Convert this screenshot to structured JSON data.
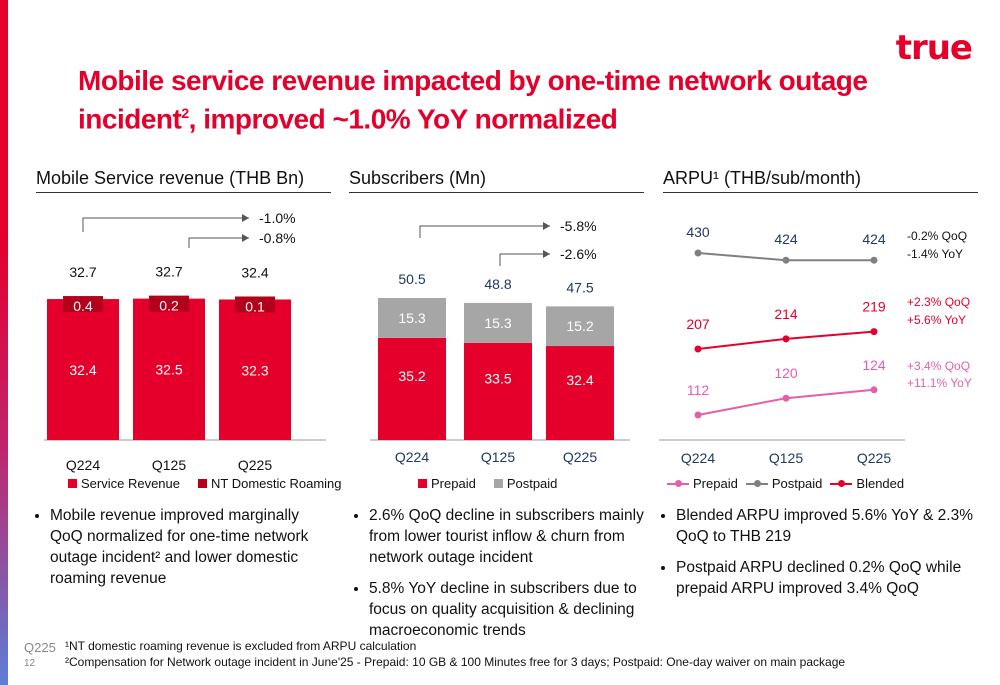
{
  "logo": "true",
  "title_line1": "Mobile service revenue impacted by one-time network outage",
  "title_line2_a": "incident",
  "title_line2_sup": "2",
  "title_line2_b": ", improved ~1.0% YoY normalized",
  "colors": {
    "red": "#e4002b",
    "darkred": "#b3001b",
    "grey": "#a6a6a6",
    "pink": "#e45fa8",
    "greyline": "#808080"
  },
  "sections": {
    "revenue": "Mobile Service revenue (THB Bn)",
    "subs": "Subscribers (Mn)",
    "arpu": "ARPU¹ (THB/sub/month)"
  },
  "chart_data": [
    {
      "type": "bar",
      "stacked": true,
      "categories": [
        "Q224",
        "Q125",
        "Q225"
      ],
      "series": [
        {
          "name": "Service Revenue",
          "values": [
            32.4,
            32.5,
            32.3
          ]
        },
        {
          "name": "NT Domestic Roaming",
          "values": [
            0.4,
            0.2,
            0.1
          ]
        }
      ],
      "totals": [
        32.7,
        32.7,
        32.4
      ],
      "annotations": [
        "-1.0%",
        "-0.8%"
      ]
    },
    {
      "type": "bar",
      "stacked": true,
      "categories": [
        "Q224",
        "Q125",
        "Q225"
      ],
      "series": [
        {
          "name": "Prepaid",
          "values": [
            35.2,
            33.5,
            32.4
          ]
        },
        {
          "name": "Postpaid",
          "values": [
            15.3,
            15.3,
            15.2
          ]
        }
      ],
      "totals": [
        50.5,
        48.8,
        47.5
      ],
      "annotations": [
        "-5.8%",
        "-2.6%"
      ]
    },
    {
      "type": "line",
      "categories": [
        "Q224",
        "Q125",
        "Q225"
      ],
      "series": [
        {
          "name": "Postpaid",
          "values": [
            430,
            424,
            424
          ],
          "annotation": [
            "-0.2% QoQ",
            "-1.4% YoY"
          ]
        },
        {
          "name": "Blended",
          "values": [
            207,
            214,
            219
          ],
          "annotation": [
            "+2.3% QoQ",
            "+5.6% YoY"
          ]
        },
        {
          "name": "Prepaid",
          "values": [
            112,
            120,
            124
          ],
          "annotation": [
            "+3.4% QoQ",
            "+11.1% YoY"
          ]
        }
      ]
    }
  ],
  "legend_rev": [
    "Service Revenue",
    "NT Domestic Roaming"
  ],
  "legend_subs": [
    "Prepaid",
    "Postpaid"
  ],
  "legend_arpu": [
    "Prepaid",
    "Postpaid",
    "Blended"
  ],
  "bullets_rev": [
    "Mobile revenue improved marginally QoQ normalized for one-time network outage incident² and lower domestic roaming revenue"
  ],
  "bullets_subs": [
    "2.6% QoQ decline in subscribers mainly from lower tourist inflow & churn from network outage incident",
    "5.8% YoY decline in subscribers due to focus on quality acquisition & declining macroeconomic trends"
  ],
  "bullets_arpu": [
    "Blended ARPU improved 5.6% YoY & 2.3% QoQ to THB 219",
    "Postpaid ARPU declined 0.2% QoQ while prepaid ARPU improved 3.4% QoQ"
  ],
  "footer": {
    "quarter": "Q225",
    "page": "12",
    "note1": "¹NT domestic roaming revenue is excluded from ARPU calculation",
    "note2": "²Compensation for Network outage incident in June'25 - Prepaid: 10 GB & 100 Minutes free for 3 days; Postpaid: One-day waiver on main package"
  }
}
